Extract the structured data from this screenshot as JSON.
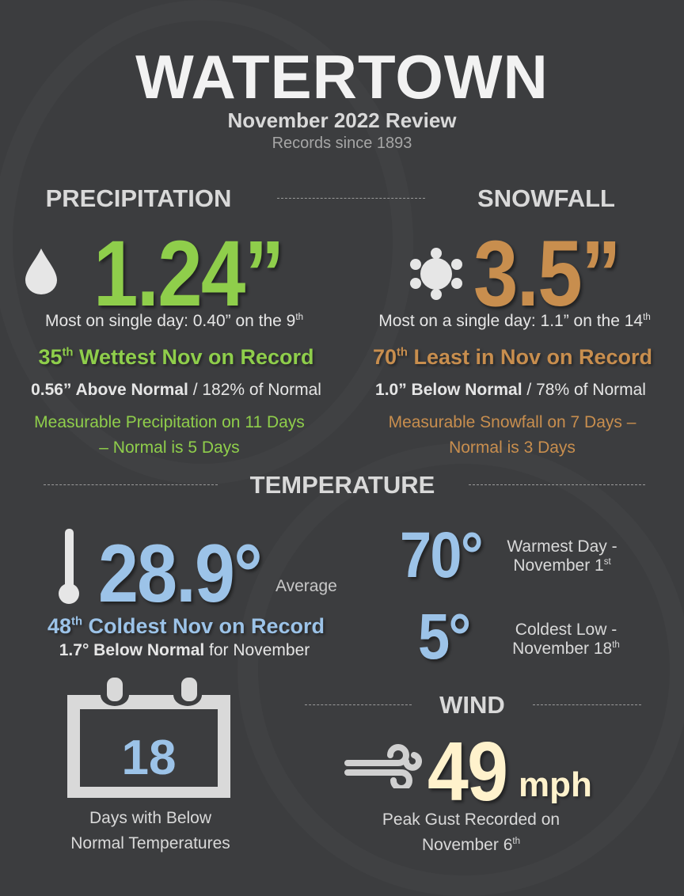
{
  "header": {
    "title": "WATERTOWN",
    "subtitle": "November 2022 Review",
    "records": "Records since 1893"
  },
  "precipitation": {
    "heading": "PRECIPITATION",
    "total": "1.24”",
    "most_single_day": "Most on single day: 0.40” on the 9",
    "most_single_day_sup": "th",
    "rank_num": "35",
    "rank_sup": "th",
    "rank_text": " Wettest Nov on Record",
    "departure_bold": "0.56” Above Normal",
    "departure_rest": " / 182% of Normal",
    "days_line1": "Measurable Precipitation on 11 Days",
    "days_line2": "– Normal is 5 Days"
  },
  "snowfall": {
    "heading": "SNOWFALL",
    "total": "3.5”",
    "most_single_day": "Most on a single day: 1.1” on the 14",
    "most_single_day_sup": "th",
    "rank_num": "70",
    "rank_sup": "th",
    "rank_text": " Least in Nov on Record",
    "departure_bold": "1.0” Below Normal",
    "departure_rest": " / 78% of Normal",
    "days_line1": "Measurable Snowfall on 7 Days –",
    "days_line2": "Normal is 3 Days"
  },
  "temperature": {
    "heading": "TEMPERATURE",
    "average": "28.9°",
    "average_label": "Average",
    "rank_num": "48",
    "rank_sup": "th",
    "rank_text": " Coldest Nov on Record",
    "departure_bold": "1.7° Below Normal",
    "departure_rest": " for November",
    "warmest": "70°",
    "warmest_line1": "Warmest Day -",
    "warmest_line2": "November 1",
    "warmest_sup": "st",
    "coldest": "5°",
    "coldest_line1": "Coldest Low -",
    "coldest_line2": "November 18",
    "coldest_sup": "th",
    "below_days": "18",
    "below_line1": "Days with Below",
    "below_line2": "Normal Temperatures"
  },
  "wind": {
    "heading": "WIND",
    "peak": "49",
    "unit": "mph",
    "line1": "Peak Gust Recorded on",
    "line2": "November 6",
    "sup": "th"
  },
  "colors": {
    "precip": "#8fce4b",
    "snow": "#c88e4e",
    "temp": "#9cc3e8",
    "wind": "#fff2cc",
    "background": "#3c3d3f"
  }
}
